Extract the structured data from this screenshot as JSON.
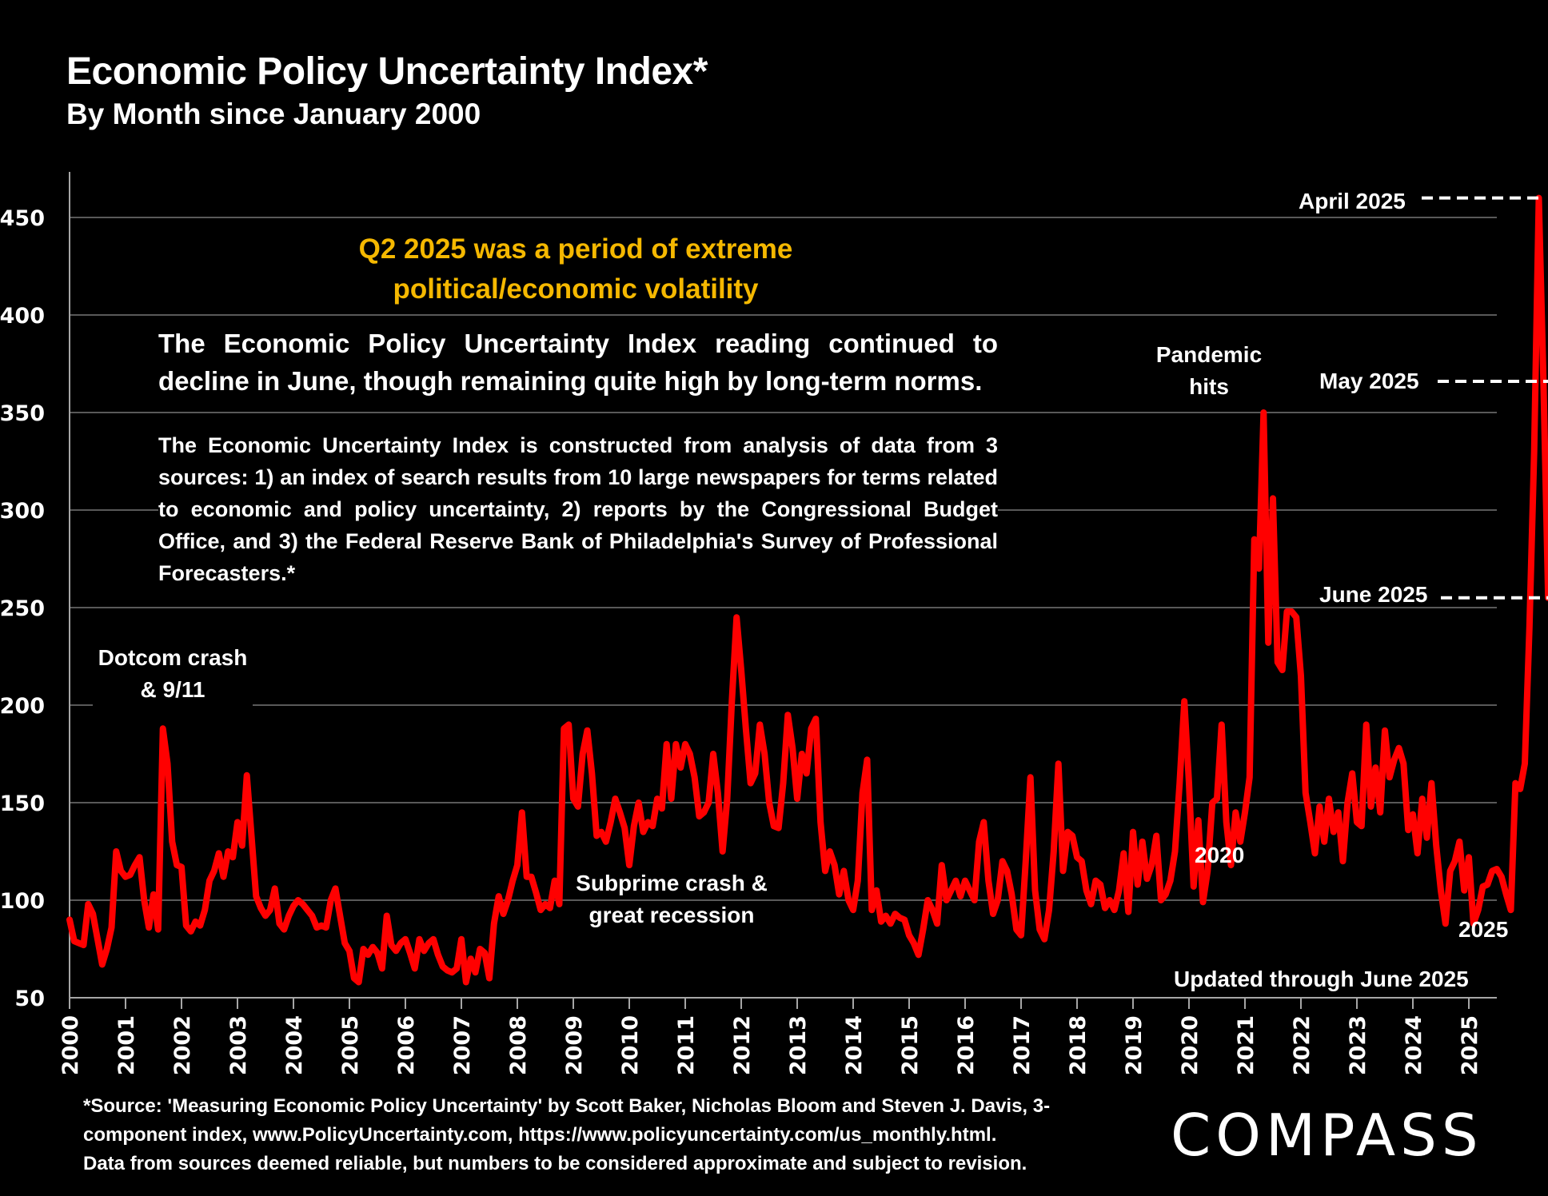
{
  "header": {
    "title": "Economic Policy Uncertainty Index*",
    "subtitle": "By Month since January 2000"
  },
  "annotations": {
    "headline_line1": "Q2 2025 was a period of extreme",
    "headline_line2": "political/economic volatility",
    "paragraph1": "The Economic Policy Uncertainty Index reading continued to decline in June, though remaining quite high by long-term norms.",
    "paragraph2": "The Economic Uncertainty Index is constructed from analysis of data from 3 sources:  1) an index of search results from 10 large newspapers for terms related to economic and policy uncertainty, 2) reports by the Congressional Budget Office, and 3) the Federal Reserve Bank of Philadelphia's Survey of Professional Forecasters.*",
    "dotcom_line1": "Dotcom crash",
    "dotcom_line2": "& 9/11",
    "subprime_line1": "Subprime crash &",
    "subprime_line2": "great recession",
    "pandemic_line1": "Pandemic",
    "pandemic_line2": "hits",
    "label_2020": "2020",
    "label_2025": "2025",
    "updated": "Updated through June 2025",
    "april": "April 2025",
    "may": "May 2025",
    "june": "June 2025"
  },
  "footer": {
    "line1": "*Source: 'Measuring Economic Policy Uncertainty' by Scott Baker, Nicholas Bloom and Steven J. Davis, 3-",
    "line2": "component  index,  www.PolicyUncertainty.com,  https://www.policyuncertainty.com/us_monthly.html.",
    "line3": "Data from sources deemed reliable, but numbers to be considered approximate and subject to revision.",
    "logo": "COMPASS"
  },
  "colors": {
    "line": "#ff0000",
    "headline": "#f5b800",
    "grid": "#595959",
    "axis": "#a6a6a6",
    "text": "#ffffff",
    "background": "#000000"
  },
  "chart_data": {
    "type": "line",
    "title": "Economic Policy Uncertainty Index*",
    "subtitle": "By Month since January 2000",
    "xlabel": "",
    "ylabel": "",
    "x_start": "2000-01",
    "x_end": "2025-06",
    "frequency": "monthly",
    "xlim": [
      2000,
      2025.5
    ],
    "ylim": [
      50,
      475
    ],
    "yticks": [
      50,
      100,
      150,
      200,
      250,
      300,
      350,
      400,
      450
    ],
    "xticks": [
      "2000",
      "2001",
      "2002",
      "2003",
      "2004",
      "2005",
      "2006",
      "2007",
      "2008",
      "2009",
      "2010",
      "2011",
      "2012",
      "2013",
      "2014",
      "2015",
      "2016",
      "2017",
      "2018",
      "2019",
      "2020",
      "2021",
      "2022",
      "2023",
      "2024",
      "2025"
    ],
    "grid": true,
    "legend": "none",
    "series": [
      {
        "name": "Economic Policy Uncertainty Index",
        "values": [
          90,
          79,
          78,
          77,
          98,
          93,
          80,
          67,
          75,
          86,
          125,
          115,
          112,
          113,
          118,
          122,
          100,
          86,
          103,
          85,
          188,
          170,
          130,
          118,
          117,
          87,
          84,
          89,
          87,
          95,
          110,
          115,
          124,
          112,
          125,
          122,
          140,
          128,
          164,
          133,
          102,
          96,
          92,
          95,
          106,
          88,
          85,
          92,
          97,
          100,
          98,
          95,
          92,
          86,
          87,
          86,
          100,
          106,
          92,
          78,
          74,
          60,
          58,
          75,
          72,
          76,
          73,
          65,
          92,
          77,
          74,
          78,
          80,
          73,
          65,
          80,
          74,
          78,
          80,
          72,
          66,
          64,
          63,
          65,
          80,
          58,
          70,
          63,
          75,
          73,
          60,
          88,
          102,
          93,
          100,
          110,
          118,
          145,
          112,
          112,
          104,
          95,
          98,
          96,
          110,
          98,
          188,
          190,
          152,
          148,
          175,
          187,
          165,
          133,
          135,
          130,
          140,
          152,
          145,
          137,
          118,
          138,
          150,
          135,
          140,
          138,
          152,
          147,
          180,
          152,
          180,
          168,
          180,
          175,
          163,
          143,
          145,
          150,
          175,
          155,
          125,
          152,
          202,
          245,
          218,
          188,
          160,
          165,
          190,
          175,
          150,
          138,
          137,
          160,
          195,
          178,
          152,
          175,
          165,
          188,
          193,
          140,
          115,
          125,
          118,
          103,
          115,
          100,
          95,
          110,
          155,
          172,
          95,
          105,
          89,
          92,
          88,
          93,
          91,
          90,
          82,
          78,
          72,
          85,
          100,
          95,
          88,
          118,
          100,
          105,
          110,
          102,
          110,
          105,
          100,
          130,
          140,
          110,
          93,
          100,
          120,
          115,
          103,
          85,
          82,
          120,
          163,
          105,
          85,
          80,
          95,
          125,
          170,
          115,
          135,
          133,
          122,
          120,
          105,
          98,
          110,
          108,
          96,
          100,
          95,
          105,
          124,
          94,
          135,
          108,
          130,
          111,
          118,
          133,
          100,
          103,
          110,
          125,
          160,
          202,
          160,
          107,
          141,
          99,
          115,
          150,
          152,
          190,
          140,
          118,
          145,
          130,
          145,
          163,
          285,
          270,
          350,
          232,
          306,
          222,
          218,
          248,
          248,
          245,
          215,
          155,
          140,
          124,
          148,
          130,
          152,
          135,
          145,
          120,
          150,
          165,
          140,
          138,
          190,
          148,
          168,
          145,
          187,
          163,
          172,
          178,
          170,
          136,
          144,
          124,
          152,
          132,
          160,
          128,
          105,
          88,
          115,
          120,
          130,
          105,
          122,
          88,
          95,
          107,
          108,
          115,
          116,
          112,
          103,
          95,
          160,
          157,
          170,
          240,
          330,
          460,
          366,
          255
        ]
      }
    ],
    "callouts": [
      {
        "label": "April 2025",
        "value": 460
      },
      {
        "label": "May 2025",
        "value": 366
      },
      {
        "label": "June 2025",
        "value": 255
      }
    ]
  }
}
